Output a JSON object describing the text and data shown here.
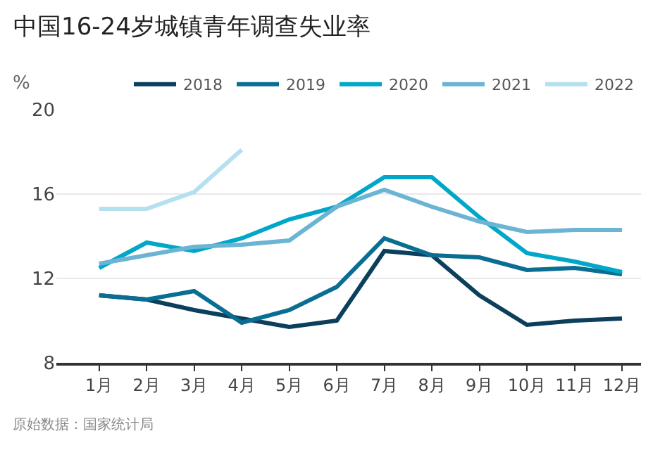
{
  "chart_data": {
    "type": "line",
    "title": "中国16-24岁城镇青年调查失业率",
    "ylabel": "%",
    "categories": [
      "1月",
      "2月",
      "3月",
      "4月",
      "5月",
      "6月",
      "7月",
      "8月",
      "9月",
      "10月",
      "11月",
      "12月"
    ],
    "series": [
      {
        "name": "2018",
        "color": "#0b3f5c",
        "values": [
          11.2,
          11.0,
          10.5,
          10.1,
          9.7,
          10.0,
          13.3,
          13.1,
          11.2,
          9.8,
          10.0,
          10.1
        ]
      },
      {
        "name": "2019",
        "color": "#0a6e93",
        "values": [
          11.2,
          11.0,
          11.4,
          9.9,
          10.5,
          11.6,
          13.9,
          13.1,
          13.0,
          12.4,
          12.5,
          12.2
        ]
      },
      {
        "name": "2020",
        "color": "#00a7c8",
        "values": [
          12.5,
          13.7,
          13.3,
          13.9,
          14.8,
          15.4,
          16.8,
          16.8,
          14.9,
          13.2,
          12.8,
          12.3
        ]
      },
      {
        "name": "2021",
        "color": "#6cb4d3",
        "values": [
          12.7,
          13.1,
          13.5,
          13.6,
          13.8,
          15.4,
          16.2,
          15.4,
          14.7,
          14.2,
          14.3,
          14.3
        ]
      },
      {
        "name": "2022",
        "color": "#b5e0f0",
        "values": [
          15.3,
          15.3,
          16.1,
          18.1,
          null,
          null,
          null,
          null,
          null,
          null,
          null,
          null
        ]
      }
    ],
    "ylim": [
      8,
      20
    ],
    "yticks": [
      8,
      12,
      16,
      20
    ],
    "grid": "y",
    "legend": "top right",
    "marker": "none",
    "line_style": "solid",
    "annotations": [
      "原始数据：国家统计局"
    ]
  }
}
